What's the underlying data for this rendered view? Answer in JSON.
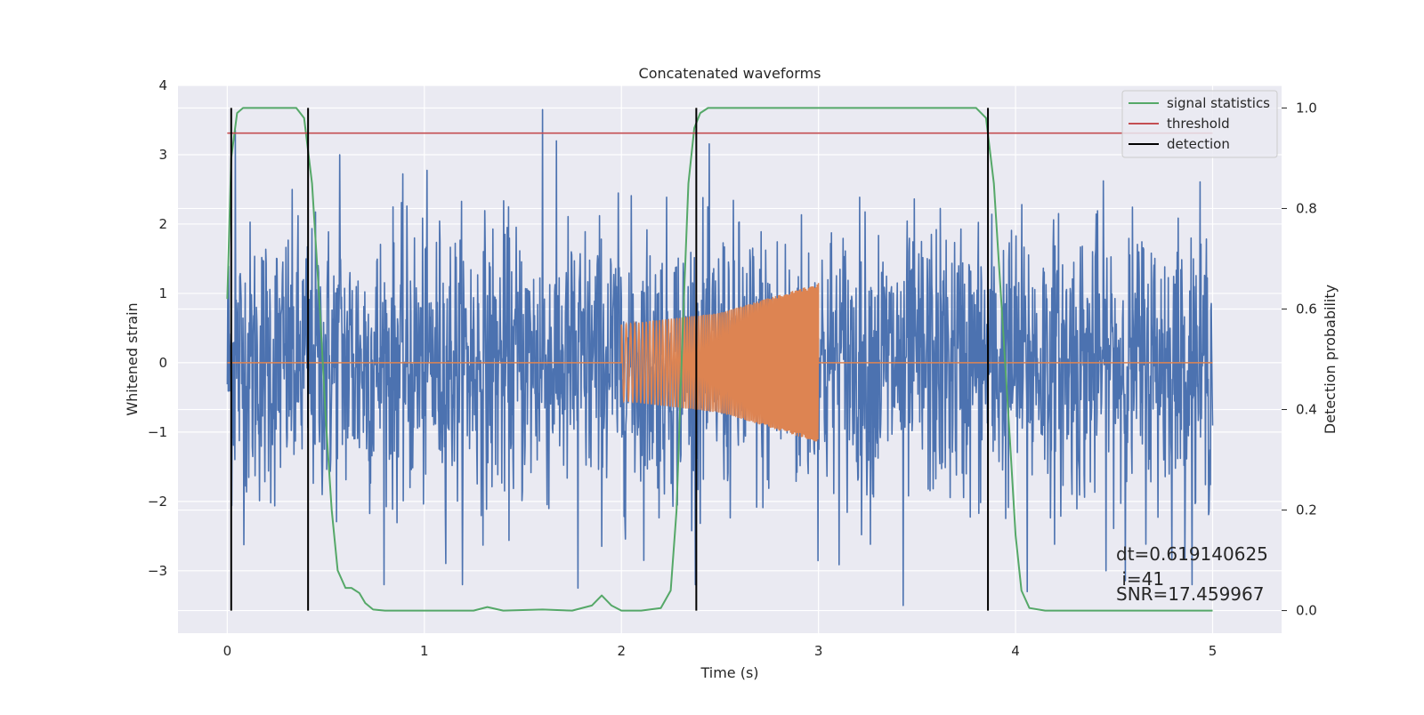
{
  "chart_data": {
    "type": "line",
    "title": "Concatenated waveforms",
    "xlabel": "Time (s)",
    "ylabel": "Whitened strain",
    "y2label": "Detection probability",
    "xlim": [
      -0.25,
      5.35
    ],
    "ylim": [
      -3.9,
      4.0
    ],
    "y2lim": [
      -0.045,
      1.045
    ],
    "x_ticks": [
      0,
      1,
      2,
      3,
      4,
      5
    ],
    "y_ticks": [
      -3,
      -2,
      -1,
      0,
      1,
      2,
      3,
      4
    ],
    "y2_ticks": [
      0.0,
      0.2,
      0.4,
      0.6,
      0.8,
      1.0
    ],
    "grid": true,
    "legend_position": "top-right",
    "colors": {
      "background": "#eaeaf2",
      "grid": "#ffffff",
      "strain": "#4c72b0",
      "waveform": "#dd8452",
      "signal_statistics": "#55a868",
      "threshold": "#c44e52",
      "detection": "#000000"
    },
    "series": [
      {
        "name": "",
        "role": "whitened-strain-noise",
        "x_range": [
          0,
          5
        ],
        "typical_amplitude": 1.0,
        "notable_peaks": [
          [
            1.6,
            3.65
          ],
          [
            0.04,
            3.35
          ],
          [
            0.57,
            3.0
          ],
          [
            3.43,
            -3.5
          ],
          [
            4.06,
            -3.3
          ],
          [
            1.78,
            -3.25
          ]
        ]
      },
      {
        "name": "",
        "role": "injected-chirp-waveform",
        "x": [
          0.0,
          2.0,
          2.0,
          2.5,
          3.0,
          3.0,
          5.0
        ],
        "envelope": [
          0.0,
          0.0,
          0.55,
          0.72,
          1.15,
          0.0,
          0.0
        ]
      },
      {
        "name": "signal statistics",
        "axis": "right",
        "x": [
          0.0,
          0.02,
          0.05,
          0.08,
          0.12,
          0.35,
          0.39,
          0.43,
          0.47,
          0.5,
          0.53,
          0.56,
          0.6,
          0.63,
          0.67,
          0.7,
          0.74,
          0.8,
          1.0,
          1.25,
          1.32,
          1.4,
          1.6,
          1.75,
          1.85,
          1.9,
          1.95,
          2.0,
          2.1,
          2.2,
          2.25,
          2.28,
          2.31,
          2.34,
          2.37,
          2.4,
          2.44,
          2.5,
          3.8,
          3.85,
          3.89,
          3.93,
          3.97,
          4.0,
          4.03,
          4.07,
          4.15,
          5.0
        ],
        "y": [
          0.62,
          0.9,
          0.99,
          1.0,
          1.0,
          1.0,
          0.98,
          0.85,
          0.6,
          0.38,
          0.2,
          0.08,
          0.045,
          0.045,
          0.035,
          0.015,
          0.002,
          0.0,
          0.0,
          0.0,
          0.007,
          0.0,
          0.002,
          0.0,
          0.01,
          0.03,
          0.01,
          0.0,
          0.0,
          0.005,
          0.04,
          0.2,
          0.55,
          0.85,
          0.96,
          0.99,
          1.0,
          1.0,
          1.0,
          0.98,
          0.85,
          0.6,
          0.35,
          0.15,
          0.04,
          0.005,
          0.0,
          0.0
        ]
      },
      {
        "name": "threshold",
        "axis": "right",
        "x": [
          0,
          5
        ],
        "y": [
          0.95,
          0.95
        ]
      },
      {
        "name": "detection",
        "axis": "right",
        "type": "vlines",
        "x": [
          0.02,
          0.41,
          2.38,
          3.86
        ],
        "y_range": [
          0.0,
          1.0
        ]
      }
    ],
    "legend": [
      "signal statistics",
      "threshold",
      "detection"
    ],
    "annotations": [
      "dt=0.619140625",
      " i=41",
      "SNR=17.459967"
    ]
  }
}
